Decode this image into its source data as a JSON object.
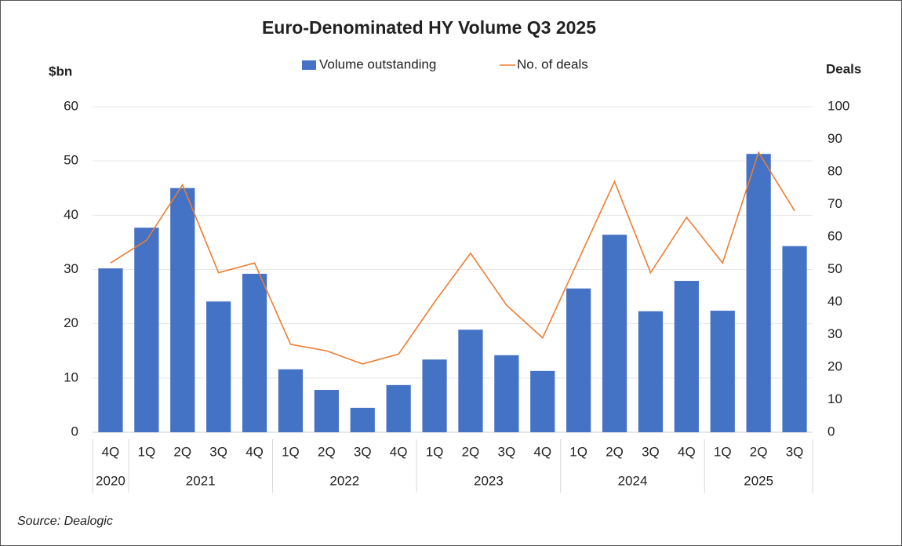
{
  "chart_data": {
    "type": "bar",
    "title": "Euro-Denominated HY Volume Q3 2025",
    "y_label": "$bn",
    "y2_label": "Deals",
    "source": "Source: Dealogic",
    "categories": [
      "4Q",
      "1Q",
      "2Q",
      "3Q",
      "4Q",
      "1Q",
      "2Q",
      "3Q",
      "4Q",
      "1Q",
      "2Q",
      "3Q",
      "4Q",
      "1Q",
      "2Q",
      "3Q",
      "4Q",
      "1Q",
      "2Q",
      "3Q"
    ],
    "year_labels": [
      "2020",
      "2021",
      null,
      null,
      null,
      "2022",
      null,
      null,
      null,
      "2023",
      null,
      null,
      null,
      "2024",
      null,
      null,
      null,
      "2025",
      null,
      null
    ],
    "series": [
      {
        "name": "Volume outstanding",
        "type": "bar",
        "axis": "y",
        "color": "#4472c4",
        "values": [
          30.2,
          37.7,
          45.0,
          24.1,
          29.2,
          11.6,
          7.8,
          4.5,
          8.7,
          13.4,
          18.9,
          14.2,
          11.3,
          26.5,
          36.4,
          22.3,
          27.9,
          22.4,
          51.3,
          34.3
        ]
      },
      {
        "name": "No. of deals",
        "type": "line",
        "axis": "y2",
        "color": "#ed7d31",
        "values": [
          52,
          59,
          76,
          49,
          52,
          27,
          25,
          21,
          24,
          40,
          55,
          39,
          29,
          53,
          77,
          49,
          66,
          52,
          86,
          68
        ]
      }
    ],
    "ylim": [
      0,
      60
    ],
    "yticks": [
      0,
      10,
      20,
      30,
      40,
      50,
      60
    ],
    "y2lim": [
      0,
      100
    ],
    "y2ticks": [
      0,
      10,
      20,
      30,
      40,
      50,
      60,
      70,
      80,
      90,
      100
    ],
    "grid": true,
    "legend": "top"
  }
}
